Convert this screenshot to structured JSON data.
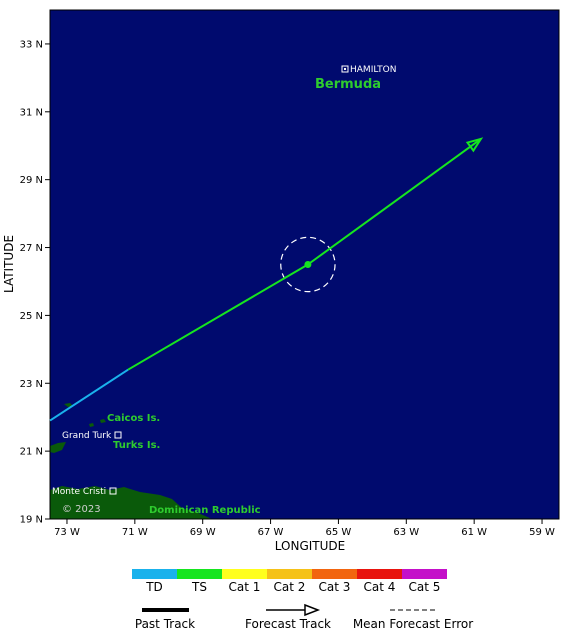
{
  "map": {
    "x_axis_title": "LONGITUDE",
    "y_axis_title": "LATITUDE",
    "lon_ticks": [
      "73 W",
      "71 W",
      "69 W",
      "67 W",
      "65 W",
      "63 W",
      "61 W",
      "59 W"
    ],
    "lat_ticks": [
      "19 N",
      "21 N",
      "23 N",
      "25 N",
      "27 N",
      "29 N",
      "31 N",
      "33 N"
    ],
    "ocean_color": "#000a6e",
    "land_color": "#0a5a0a",
    "copyright": "© 2023"
  },
  "places": {
    "hamilton": "HAMILTON",
    "bermuda": "Bermuda",
    "caicos": "Caicos Is.",
    "grand_turk": "Grand Turk",
    "turks": "Turks Is.",
    "monte_cristi": "Monte Cristi",
    "dominican_republic": "Dominican Republic"
  },
  "storm": {
    "past_track": [
      {
        "lon": -73.5,
        "lat": 21.9,
        "category": "TD"
      },
      {
        "lon": -71.2,
        "lat": 23.4,
        "category": "TS"
      },
      {
        "lon": -65.9,
        "lat": 26.5,
        "category": "TS"
      }
    ],
    "forecast_track": [
      {
        "lon": -65.9,
        "lat": 26.5,
        "category": "TS"
      },
      {
        "lon": -60.8,
        "lat": 30.2,
        "category": "TS"
      }
    ],
    "current_position": {
      "lon": -65.9,
      "lat": 26.5
    },
    "error_radius_deg": 0.8
  },
  "legend": {
    "categories": [
      {
        "label": "TD",
        "color": "#1ab2ec"
      },
      {
        "label": "TS",
        "color": "#16e51f"
      },
      {
        "label": "Cat 1",
        "color": "#ffff1e"
      },
      {
        "label": "Cat 2",
        "color": "#f5c218"
      },
      {
        "label": "Cat 3",
        "color": "#f2650f"
      },
      {
        "label": "Cat 4",
        "color": "#e8140e"
      },
      {
        "label": "Cat 5",
        "color": "#c410c9"
      }
    ],
    "past_track": "Past Track",
    "forecast_track": "Forecast Track",
    "mean_forecast_error": "Mean Forecast Error"
  }
}
